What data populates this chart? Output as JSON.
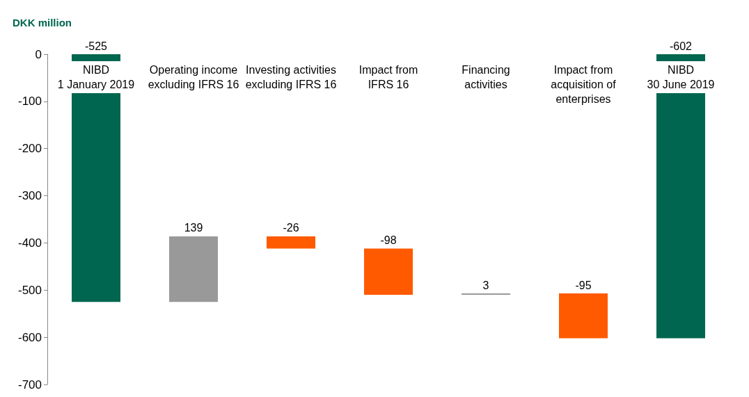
{
  "chart_data": {
    "type": "bar",
    "ylabel": "DKK million",
    "categories": [
      "NIBD\n1 January 2019",
      "Operating income\nexcluding IFRS 16",
      "Investing activities\nexcluding IFRS 16",
      "Impact from\nIFRS 16",
      "Financing\nactivities",
      "Impact from\nacquisition of\nenterprises",
      "NIBD\n30 June 2019"
    ],
    "values": [
      -525,
      139,
      -26,
      -98,
      3,
      -95,
      -602
    ],
    "base": [
      0,
      -525,
      -386,
      -412,
      -510,
      -507,
      0
    ],
    "value_labels": [
      "-525",
      "139",
      "-26",
      "-98",
      "3",
      "-95",
      "-602"
    ],
    "colors": [
      "#00664f",
      "#999999",
      "#ff5a00",
      "#ff5a00",
      "#999999",
      "#ff5a00",
      "#00664f"
    ],
    "ylim": [
      -700,
      0
    ],
    "yticks": [
      -700,
      -600,
      -500,
      -400,
      -300,
      -200,
      -100,
      0
    ],
    "grid": false
  }
}
